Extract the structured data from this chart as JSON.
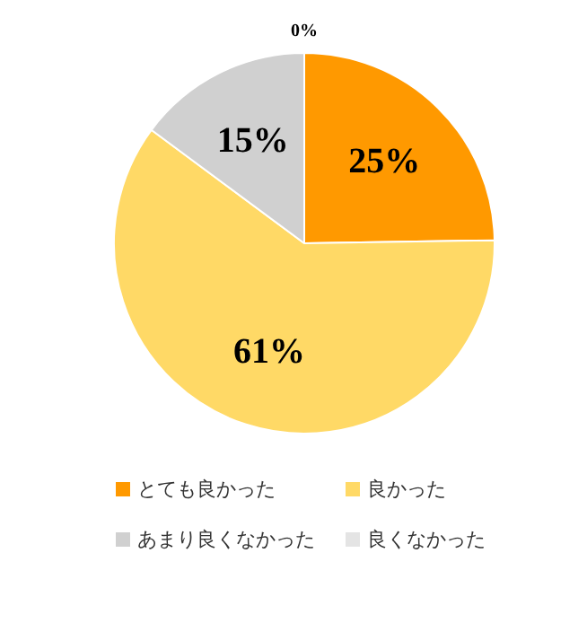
{
  "chart_data": {
    "type": "pie",
    "categories": [
      "とても良かった",
      "良かった",
      "あまり良くなかった",
      "良くなかった"
    ],
    "values": [
      25,
      61,
      15,
      0
    ],
    "colors": [
      "#ff9900",
      "#ffd966",
      "#d0d0d0",
      "#e4e4e4"
    ],
    "value_labels": [
      "25%",
      "61%",
      "15%",
      "0%"
    ],
    "legend": "bottom"
  }
}
